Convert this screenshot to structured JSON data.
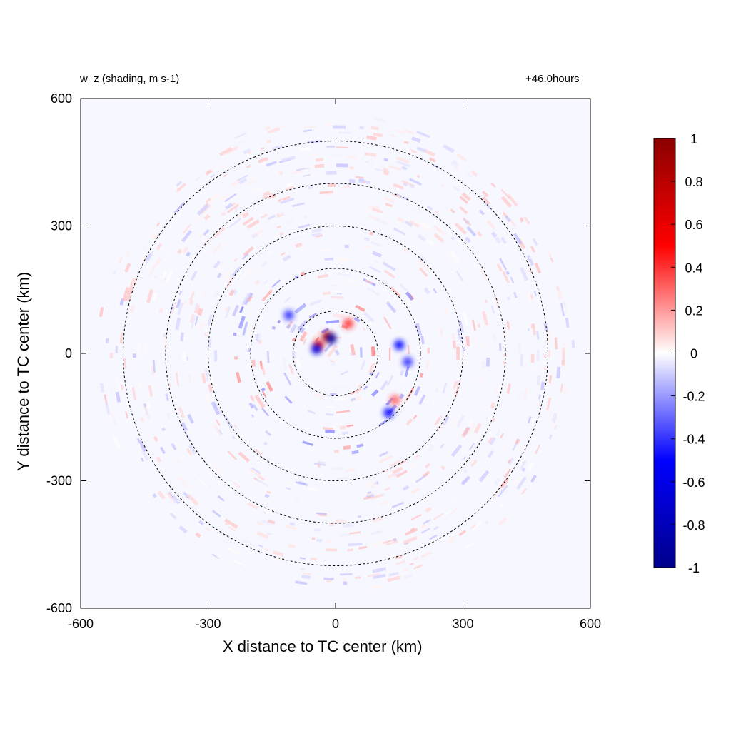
{
  "chart_data": {
    "type": "heatmap",
    "title_left": "w_z (shading, m s-1)",
    "title_right": "+46.0hours",
    "xlabel": "X distance to TC center (km)",
    "ylabel": "Y distance to TC center (km)",
    "xlim": [
      -600,
      600
    ],
    "ylim": [
      -600,
      600
    ],
    "xticks": [
      -600,
      -300,
      0,
      300,
      600
    ],
    "yticks": [
      -600,
      -300,
      0,
      300,
      600
    ],
    "xtick_labels": [
      "-600",
      "-300",
      "0",
      "300",
      "600"
    ],
    "ytick_labels": [
      "-600",
      "-300",
      "0",
      "300",
      "600"
    ],
    "range_circles_km": [
      100,
      200,
      300,
      400,
      500
    ],
    "colorbar": {
      "min": -1,
      "max": 1,
      "ticks": [
        1,
        0.8,
        0.6,
        0.4,
        0.2,
        0,
        -0.2,
        -0.4,
        -0.6,
        -0.8,
        -1
      ],
      "tick_labels": [
        "1",
        "0.8",
        "0.6",
        "0.4",
        "0.2",
        "0",
        "-0.2",
        "-0.4",
        "-0.6",
        "-0.8",
        "-1"
      ],
      "colors": [
        "#00008b",
        "#0000ff",
        "#ffffff",
        "#ff0000",
        "#8b0000"
      ]
    },
    "field_features": [
      {
        "x": -20,
        "y": 40,
        "value": 0.8
      },
      {
        "x": -10,
        "y": 35,
        "value": -0.9
      },
      {
        "x": -40,
        "y": 20,
        "value": 0.6
      },
      {
        "x": -45,
        "y": 10,
        "value": -0.6
      },
      {
        "x": 150,
        "y": 20,
        "value": -0.5
      },
      {
        "x": 170,
        "y": -20,
        "value": -0.4
      },
      {
        "x": 125,
        "y": -140,
        "value": -0.5
      },
      {
        "x": 140,
        "y": -110,
        "value": 0.3
      },
      {
        "x": -110,
        "y": 90,
        "value": -0.4
      },
      {
        "x": 30,
        "y": 70,
        "value": 0.4
      }
    ]
  }
}
